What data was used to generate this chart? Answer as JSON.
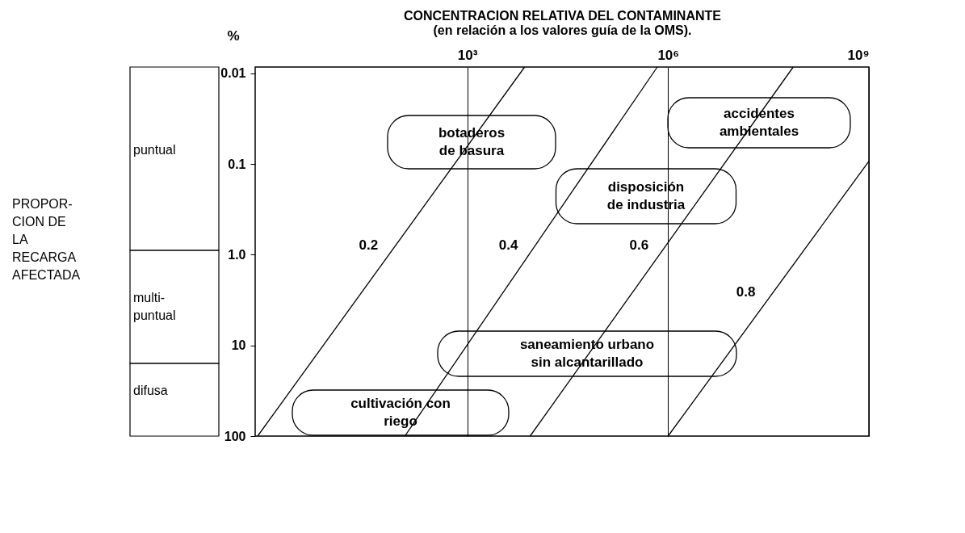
{
  "chart_data": {
    "type": "line",
    "xlabel": "CONCENTRACION RELATIVA DEL CONTAMINANTE\n(en relación a los valores guía de la OMS).",
    "ylabel": "%",
    "series": [
      {
        "name": "0.2",
        "color": "#000000",
        "x": [
          0.74,
          7200
        ],
        "values": [
          100,
          0.0085
        ]
      },
      {
        "name": "0.4",
        "color": "#000000",
        "x": [
          117,
          690000
        ],
        "values": [
          100,
          0.0085
        ]
      },
      {
        "name": "0.6",
        "color": "#000000",
        "x": [
          8700,
          74000000
        ],
        "values": [
          100,
          0.0085
        ]
      },
      {
        "name": "0.8",
        "color": "#000000",
        "x": [
          1000000,
          1000000000
        ],
        "values": [
          100,
          0.093
        ]
      }
    ],
    "log": "xy",
    "xlim": [
      0.68,
      1000000000
    ],
    "xticks": [
      {
        "value": 1000,
        "label": "10³"
      },
      {
        "value": 1000000,
        "label": "10⁶"
      },
      {
        "value": 1000000000,
        "label": "10⁹"
      }
    ],
    "ylim": [
      100,
      0.0085
    ],
    "yticks": [
      0.01,
      0.1,
      {
        "value": 1,
        "label": "1.0"
      },
      10,
      100
    ],
    "grid": "x",
    "legend": false,
    "marker": "none",
    "line_style": "solid",
    "annotations": [
      "PROPOR-\nCION DE\nLA\nRECARGA\nAFECTADA",
      "botaderos\nde basura",
      "accidentes\nambientales",
      "disposición\nde industria",
      "saneamiento urbano\nsin alcantarillado",
      "cultivación con\nriego",
      "puntual",
      "multi-\npuntual",
      "difusa"
    ]
  }
}
